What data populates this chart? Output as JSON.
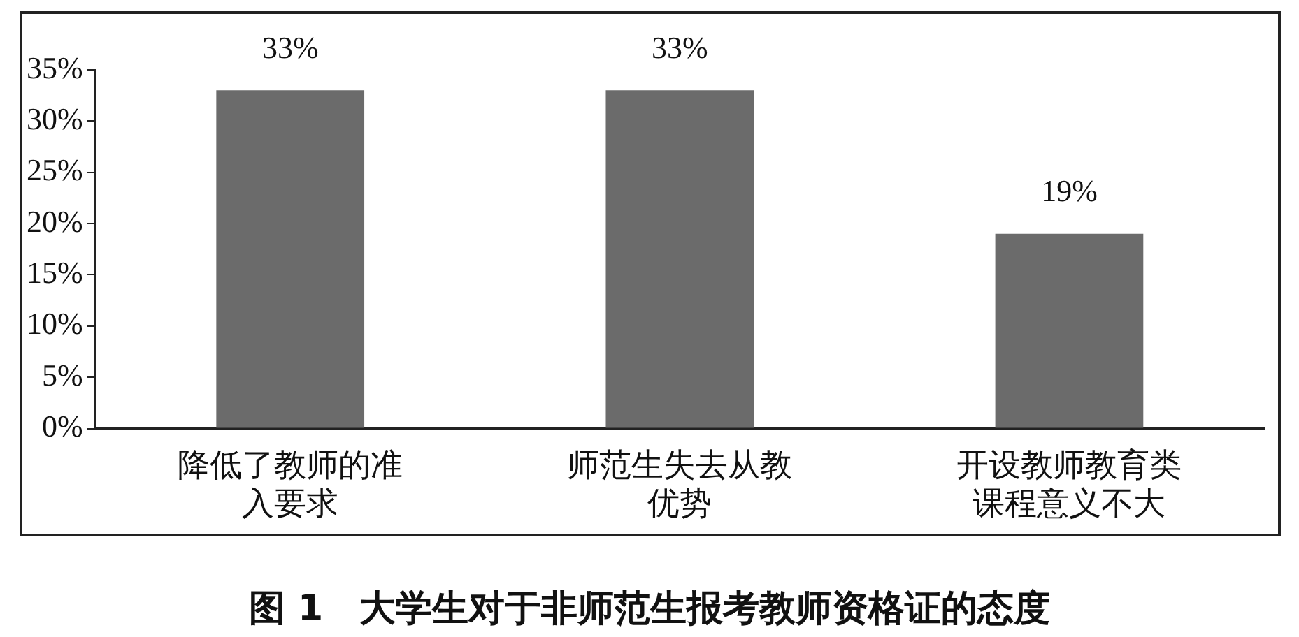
{
  "chart_data": {
    "type": "bar",
    "title": "图 1　大学生对于非师范生报考教师资格证的态度",
    "categories": [
      "降低了教师的准入要求",
      "师范生失去从教优势",
      "开设教师教育类课程意义不大"
    ],
    "values": [
      33,
      33,
      19
    ],
    "value_labels": [
      "33%",
      "33%",
      "19%"
    ],
    "color": "#6b6b6b",
    "ylim": [
      0,
      35
    ],
    "yticks": [
      {
        "value": 0,
        "label": "0%"
      },
      {
        "value": 5,
        "label": "5%"
      },
      {
        "value": 10,
        "label": "10%"
      },
      {
        "value": 15,
        "label": "15%"
      },
      {
        "value": 20,
        "label": "20%"
      },
      {
        "value": 25,
        "label": "25%"
      },
      {
        "value": 30,
        "label": "30%"
      },
      {
        "value": 35,
        "label": "35%"
      }
    ],
    "grid": false,
    "legend": false
  }
}
